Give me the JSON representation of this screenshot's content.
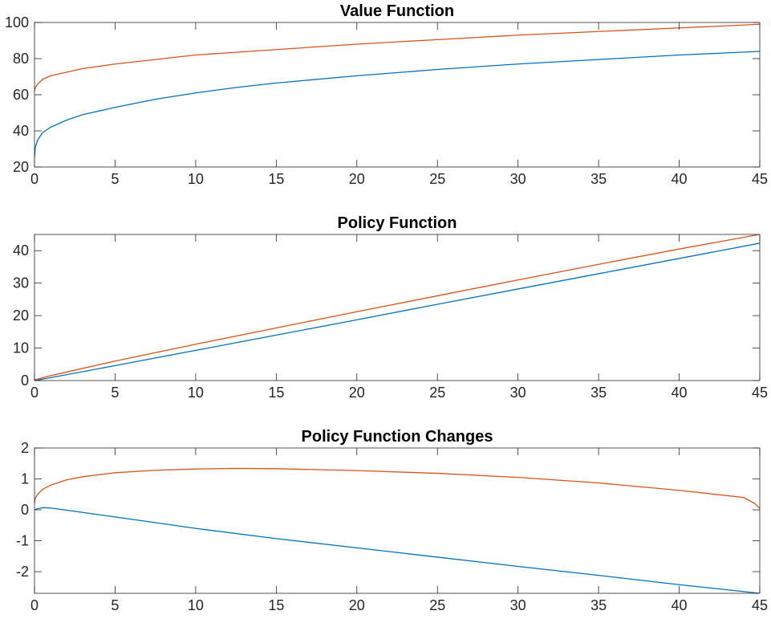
{
  "colors": {
    "series1": "#0072bd",
    "series2": "#d95319",
    "axes": "#262626",
    "background": "#ffffff"
  },
  "chart_data": [
    {
      "type": "line",
      "title": "Value Function",
      "xlabel": "",
      "ylabel": "",
      "xlim": [
        0,
        45
      ],
      "ylim": [
        20,
        100
      ],
      "xticks": [
        0,
        5,
        10,
        15,
        20,
        25,
        30,
        35,
        40,
        45
      ],
      "yticks": [
        20,
        40,
        60,
        80,
        100
      ],
      "grid": false,
      "legend": "none",
      "series": [
        {
          "color": "#0072bd",
          "x": [
            0,
            0.05,
            0.2,
            0.5,
            1,
            2,
            3,
            5,
            7.5,
            10,
            12.5,
            15,
            20,
            25,
            30,
            35,
            40,
            45
          ],
          "y": [
            25,
            31,
            35,
            39,
            42,
            46,
            49,
            53,
            57.5,
            61,
            64,
            66.5,
            70.5,
            74,
            77,
            79.5,
            82,
            84
          ]
        },
        {
          "color": "#d95319",
          "x": [
            0,
            0.05,
            0.2,
            0.5,
            1,
            2,
            3,
            5,
            7.5,
            10,
            12.5,
            15,
            20,
            25,
            30,
            35,
            40,
            45
          ],
          "y": [
            62,
            64,
            66,
            68.5,
            70.5,
            72.5,
            74.5,
            77,
            79.5,
            82,
            83.5,
            85,
            88,
            90.5,
            93,
            95,
            97,
            99
          ]
        }
      ]
    },
    {
      "type": "line",
      "title": "Policy Function",
      "xlabel": "",
      "ylabel": "",
      "xlim": [
        0,
        45
      ],
      "ylim": [
        0,
        45
      ],
      "xticks": [
        0,
        5,
        10,
        15,
        20,
        25,
        30,
        35,
        40,
        45
      ],
      "yticks": [
        0,
        10,
        20,
        30,
        40
      ],
      "grid": false,
      "legend": "none",
      "series": [
        {
          "color": "#0072bd",
          "x": [
            0,
            1,
            5,
            10,
            15,
            20,
            25,
            30,
            35,
            40,
            45
          ],
          "y": [
            0,
            0.9,
            4.6,
            9.3,
            14,
            18.7,
            23.5,
            28.2,
            32.9,
            37.6,
            42.3
          ]
        },
        {
          "color": "#d95319",
          "x": [
            0,
            1,
            5,
            10,
            15,
            20,
            25,
            30,
            35,
            40,
            45
          ],
          "y": [
            0.2,
            1.5,
            6,
            11.2,
            16.2,
            21.2,
            26.1,
            31,
            35.8,
            40.5,
            45
          ]
        }
      ]
    },
    {
      "type": "line",
      "title": "Policy Function Changes",
      "xlabel": "",
      "ylabel": "",
      "xlim": [
        0,
        45
      ],
      "ylim": [
        -2.7,
        2
      ],
      "xticks": [
        0,
        5,
        10,
        15,
        20,
        25,
        30,
        35,
        40,
        45
      ],
      "yticks": [
        -2,
        -1,
        0,
        1,
        2
      ],
      "grid": false,
      "legend": "none",
      "series": [
        {
          "color": "#0072bd",
          "x": [
            0,
            0.2,
            0.5,
            1,
            5,
            10,
            15,
            20,
            25,
            30,
            35,
            40,
            45
          ],
          "y": [
            0,
            0.04,
            0.07,
            0.06,
            -0.23,
            -0.6,
            -0.93,
            -1.23,
            -1.53,
            -1.83,
            -2.12,
            -2.42,
            -2.7
          ]
        },
        {
          "color": "#d95319",
          "x": [
            0,
            0.05,
            0.2,
            0.5,
            1,
            2,
            3,
            5,
            7.5,
            10,
            12.5,
            15,
            20,
            25,
            30,
            35,
            40,
            44,
            44.7,
            45
          ],
          "y": [
            0.2,
            0.38,
            0.5,
            0.66,
            0.8,
            0.97,
            1.07,
            1.2,
            1.28,
            1.32,
            1.34,
            1.33,
            1.27,
            1.18,
            1.05,
            0.87,
            0.63,
            0.4,
            0.2,
            0.05
          ]
        }
      ]
    }
  ]
}
